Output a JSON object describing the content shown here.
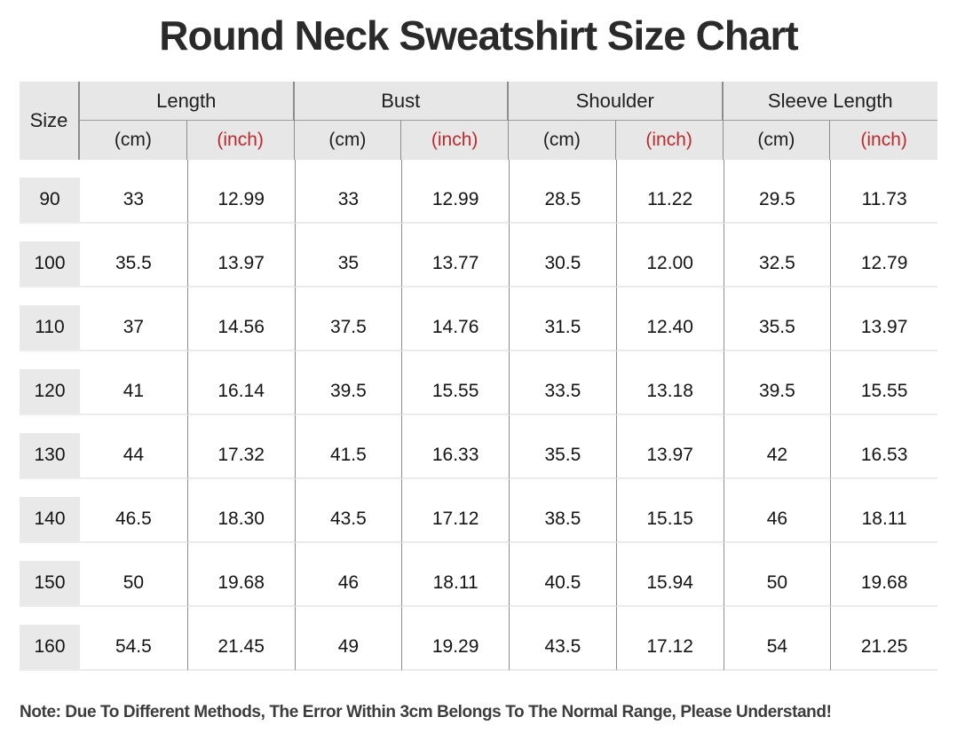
{
  "title": "Round Neck Sweatshirt Size Chart",
  "note": "Note: Due To Different Methods, The Error Within 3cm Belongs To The Normal Range, Please Understand!",
  "colors": {
    "accent_red": "#bc2a2e",
    "header_bg": "#e7e7e7",
    "chip_bg": "#e9e9e9",
    "line_dark": "#8d8d8d",
    "line_light": "#ececec",
    "title_color": "#2a2a2a",
    "note_color": "#3c3c3c"
  },
  "table": {
    "size_header": "Size",
    "groups": [
      {
        "label": "Length"
      },
      {
        "label": "Bust"
      },
      {
        "label": "Shoulder"
      },
      {
        "label": "Sleeve Length"
      }
    ],
    "unit_cm": "(cm)",
    "unit_inch": "(inch)",
    "rows": [
      {
        "size": "90",
        "values": [
          "33",
          "12.99",
          "33",
          "12.99",
          "28.5",
          "11.22",
          "29.5",
          "11.73"
        ]
      },
      {
        "size": "100",
        "values": [
          "35.5",
          "13.97",
          "35",
          "13.77",
          "30.5",
          "12.00",
          "32.5",
          "12.79"
        ]
      },
      {
        "size": "110",
        "values": [
          "37",
          "14.56",
          "37.5",
          "14.76",
          "31.5",
          "12.40",
          "35.5",
          "13.97"
        ]
      },
      {
        "size": "120",
        "values": [
          "41",
          "16.14",
          "39.5",
          "15.55",
          "33.5",
          "13.18",
          "39.5",
          "15.55"
        ]
      },
      {
        "size": "130",
        "values": [
          "44",
          "17.32",
          "41.5",
          "16.33",
          "35.5",
          "13.97",
          "42",
          "16.53"
        ]
      },
      {
        "size": "140",
        "values": [
          "46.5",
          "18.30",
          "43.5",
          "17.12",
          "38.5",
          "15.15",
          "46",
          "18.11"
        ]
      },
      {
        "size": "150",
        "values": [
          "50",
          "19.68",
          "46",
          "18.11",
          "40.5",
          "15.94",
          "50",
          "19.68"
        ]
      },
      {
        "size": "160",
        "values": [
          "54.5",
          "21.45",
          "49",
          "19.29",
          "43.5",
          "17.12",
          "54",
          "21.25"
        ]
      }
    ]
  },
  "chart_data": {
    "type": "table",
    "title": "Round Neck Sweatshirt Size Chart",
    "columns": [
      "Size",
      "Length (cm)",
      "Length (inch)",
      "Bust (cm)",
      "Bust (inch)",
      "Shoulder (cm)",
      "Shoulder (inch)",
      "Sleeve Length (cm)",
      "Sleeve Length (inch)"
    ],
    "rows": [
      [
        90,
        33,
        12.99,
        33,
        12.99,
        28.5,
        11.22,
        29.5,
        11.73
      ],
      [
        100,
        35.5,
        13.97,
        35,
        13.77,
        30.5,
        12.0,
        32.5,
        12.79
      ],
      [
        110,
        37,
        14.56,
        37.5,
        14.76,
        31.5,
        12.4,
        35.5,
        13.97
      ],
      [
        120,
        41,
        16.14,
        39.5,
        15.55,
        33.5,
        13.18,
        39.5,
        15.55
      ],
      [
        130,
        44,
        17.32,
        41.5,
        16.33,
        35.5,
        13.97,
        42,
        16.53
      ],
      [
        140,
        46.5,
        18.3,
        43.5,
        17.12,
        38.5,
        15.15,
        46,
        18.11
      ],
      [
        150,
        50,
        19.68,
        46,
        18.11,
        40.5,
        15.94,
        50,
        19.68
      ],
      [
        160,
        54.5,
        21.45,
        49,
        19.29,
        43.5,
        17.12,
        54,
        21.25
      ]
    ],
    "note": "Note: Due To Different Methods, The Error Within 3cm Belongs To The Normal Range, Please Understand!"
  }
}
